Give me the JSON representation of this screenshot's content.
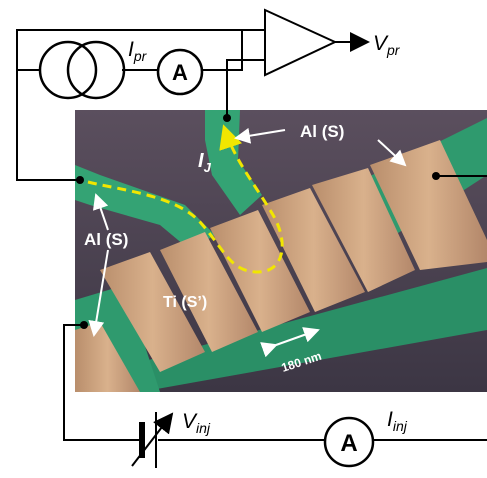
{
  "labels": {
    "i_pr": "I",
    "i_pr_sub": "pr",
    "ammeter_top": "A",
    "v_pr": "V",
    "v_pr_sub": "pr",
    "al_s_right": "Al (S)",
    "al_s_left": "Al (S)",
    "i_j": "I",
    "i_j_sub": "J",
    "ti_s": "Ti (S’)",
    "scale": "180 nm",
    "v_inj": "V",
    "v_inj_sub": "inj",
    "i_inj": "I",
    "i_inj_sub": "inj",
    "ammeter_bottom": "A"
  },
  "colors": {
    "substrate": "#4a4350",
    "aluminum": "#2f9a6e",
    "titanium": "#c99f7a",
    "current_path": "#f1e600",
    "wire": "#000000"
  }
}
